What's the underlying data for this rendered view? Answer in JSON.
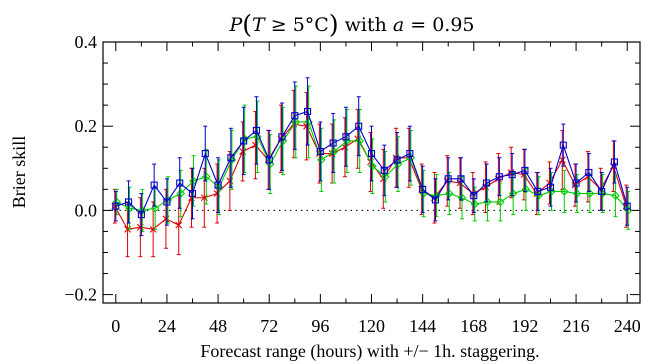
{
  "chart_data": {
    "type": "line",
    "title_parts": {
      "p": "P",
      "t": "T",
      "relation": " ≥ 5°C",
      "with": " with ",
      "a": "a",
      "eq": " = 0.95"
    },
    "xlabel": "Forecast range (hours) with +/− 1h. staggering.",
    "ylabel": "Brier skill",
    "xlim": [
      -6,
      246
    ],
    "ylim": [
      -0.22,
      0.4
    ],
    "xticks": [
      0,
      24,
      48,
      72,
      96,
      120,
      144,
      168,
      192,
      216,
      240
    ],
    "yticks": [
      -0.2,
      0.0,
      0.2,
      0.4
    ],
    "xtick_labels": [
      "0",
      "24",
      "48",
      "72",
      "96",
      "120",
      "144",
      "168",
      "192",
      "216",
      "240"
    ],
    "ytick_labels": [
      "−0.2",
      "0.0",
      "0.2",
      "0.4"
    ],
    "reference_line": {
      "y": 0.0,
      "style": "dotted"
    },
    "grid": false,
    "series": [
      {
        "color": "#dd0000",
        "marker": "x",
        "x_offset": -1,
        "x": [
          0,
          6,
          12,
          18,
          24,
          30,
          36,
          42,
          48,
          54,
          60,
          66,
          72,
          78,
          84,
          90,
          96,
          102,
          108,
          114,
          120,
          126,
          132,
          138,
          144,
          150,
          156,
          162,
          168,
          174,
          180,
          186,
          192,
          198,
          204,
          210,
          216,
          222,
          228,
          234,
          240
        ],
        "y": [
          0.01,
          -0.045,
          -0.04,
          -0.045,
          -0.02,
          -0.035,
          0.03,
          0.03,
          0.04,
          0.07,
          0.14,
          0.155,
          0.12,
          0.17,
          0.205,
          0.2,
          0.135,
          0.135,
          0.15,
          0.17,
          0.115,
          0.075,
          0.125,
          0.125,
          0.05,
          0.03,
          0.07,
          0.065,
          0.04,
          0.055,
          0.075,
          0.09,
          0.085,
          0.04,
          0.065,
          0.12,
          0.06,
          0.08,
          0.05,
          0.105,
          0.01
        ],
        "err": [
          0.04,
          0.065,
          0.07,
          0.065,
          0.07,
          0.07,
          0.07,
          0.07,
          0.07,
          0.07,
          0.07,
          0.08,
          0.07,
          0.08,
          0.08,
          0.08,
          0.07,
          0.07,
          0.07,
          0.07,
          0.07,
          0.07,
          0.07,
          0.07,
          0.06,
          0.06,
          0.06,
          0.06,
          0.05,
          0.06,
          0.06,
          0.06,
          0.06,
          0.05,
          0.05,
          0.07,
          0.05,
          0.06,
          0.05,
          0.06,
          0.05
        ]
      },
      {
        "color": "#00cc00",
        "marker": "diamond",
        "x_offset": 1,
        "x": [
          0,
          6,
          12,
          18,
          24,
          30,
          36,
          42,
          48,
          54,
          60,
          66,
          72,
          78,
          84,
          90,
          96,
          102,
          108,
          114,
          120,
          126,
          132,
          138,
          144,
          150,
          156,
          162,
          168,
          174,
          180,
          186,
          192,
          198,
          204,
          210,
          216,
          222,
          228,
          234,
          240
        ],
        "y": [
          0.02,
          0.005,
          0.0,
          0.005,
          0.025,
          0.04,
          0.07,
          0.08,
          0.055,
          0.12,
          0.17,
          0.175,
          0.11,
          0.165,
          0.21,
          0.21,
          0.12,
          0.14,
          0.165,
          0.165,
          0.105,
          0.08,
          0.11,
          0.125,
          0.04,
          0.035,
          0.04,
          0.03,
          0.015,
          0.02,
          0.02,
          0.04,
          0.05,
          0.035,
          0.045,
          0.045,
          0.04,
          0.04,
          0.04,
          0.035,
          0.0
        ],
        "err": [
          0.03,
          0.05,
          0.05,
          0.05,
          0.055,
          0.055,
          0.06,
          0.065,
          0.065,
          0.07,
          0.08,
          0.085,
          0.07,
          0.08,
          0.085,
          0.085,
          0.075,
          0.075,
          0.075,
          0.075,
          0.065,
          0.06,
          0.065,
          0.065,
          0.055,
          0.05,
          0.05,
          0.05,
          0.04,
          0.045,
          0.045,
          0.05,
          0.05,
          0.045,
          0.045,
          0.05,
          0.045,
          0.045,
          0.045,
          0.05,
          0.045
        ]
      },
      {
        "color": "#0000cc",
        "marker": "square",
        "x_offset": 0,
        "x": [
          0,
          6,
          12,
          18,
          24,
          30,
          36,
          42,
          48,
          54,
          60,
          66,
          72,
          78,
          84,
          90,
          96,
          102,
          108,
          114,
          120,
          126,
          132,
          138,
          144,
          150,
          156,
          162,
          168,
          174,
          180,
          186,
          192,
          198,
          204,
          210,
          216,
          222,
          228,
          234,
          240
        ],
        "y": [
          0.01,
          0.02,
          -0.01,
          0.06,
          0.02,
          0.065,
          0.04,
          0.135,
          0.06,
          0.125,
          0.165,
          0.19,
          0.12,
          0.175,
          0.225,
          0.235,
          0.14,
          0.16,
          0.175,
          0.2,
          0.135,
          0.095,
          0.12,
          0.135,
          0.05,
          0.025,
          0.075,
          0.075,
          0.035,
          0.065,
          0.08,
          0.085,
          0.095,
          0.045,
          0.055,
          0.155,
          0.065,
          0.09,
          0.045,
          0.115,
          0.01
        ],
        "err": [
          0.035,
          0.05,
          0.05,
          0.05,
          0.055,
          0.06,
          0.06,
          0.065,
          0.065,
          0.07,
          0.08,
          0.08,
          0.07,
          0.08,
          0.08,
          0.08,
          0.07,
          0.07,
          0.07,
          0.07,
          0.065,
          0.06,
          0.065,
          0.065,
          0.055,
          0.05,
          0.05,
          0.05,
          0.04,
          0.045,
          0.045,
          0.05,
          0.05,
          0.045,
          0.045,
          0.05,
          0.045,
          0.045,
          0.045,
          0.05,
          0.045
        ]
      }
    ]
  }
}
